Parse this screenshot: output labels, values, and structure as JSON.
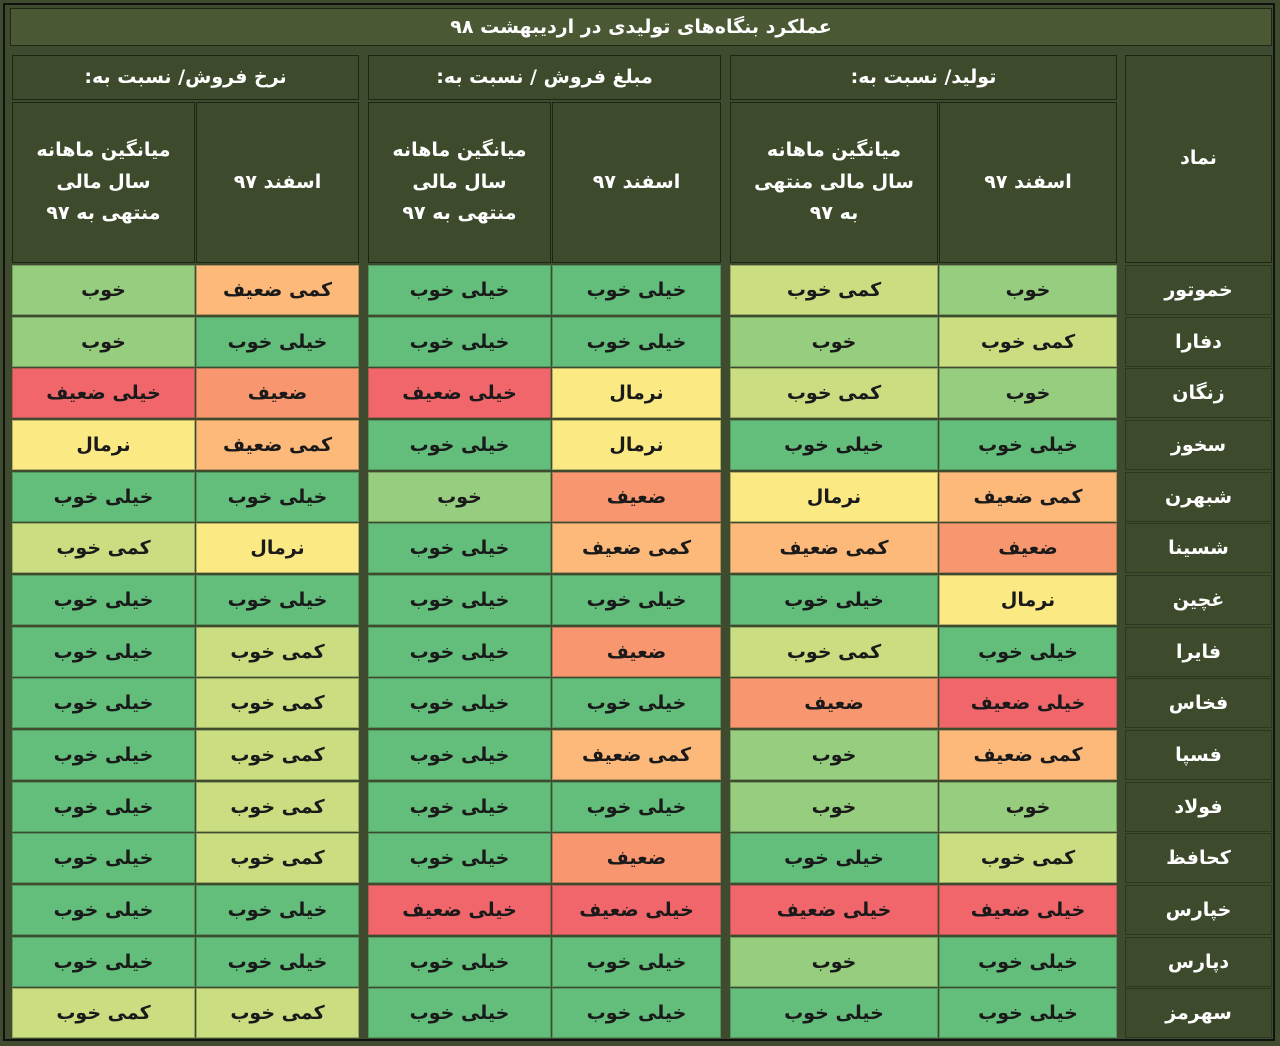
{
  "chart_data": {
    "type": "table",
    "title": "عملکرد بنگاه‌های تولیدی در اردیبهشت ۹۸",
    "symbol_header": "نماد",
    "groups": [
      {
        "label": "تولید/ نسبت به:",
        "columns": [
          "اسفند ۹۷",
          "میانگین ماهانه سال مالی منتهی به ۹۷"
        ]
      },
      {
        "label": "مبلغ فروش / نسبت به:",
        "columns": [
          "اسفند ۹۷",
          "میانگین ماهانه سال مالی منتهی به ۹۷"
        ]
      },
      {
        "label": "نرخ فروش/ نسبت به:",
        "columns": [
          "اسفند ۹۷",
          "میانگین ماهانه سال مالی منتهی به ۹۷"
        ]
      }
    ],
    "rows": [
      {
        "symbol": "خموتور",
        "values": [
          "خوب",
          "کمی خوب",
          "خیلی خوب",
          "خیلی خوب",
          "کمی ضعیف",
          "خوب"
        ]
      },
      {
        "symbol": "دفارا",
        "values": [
          "کمی خوب",
          "خوب",
          "خیلی خوب",
          "خیلی خوب",
          "خیلی خوب",
          "خوب"
        ]
      },
      {
        "symbol": "زنگان",
        "values": [
          "خوب",
          "کمی خوب",
          "نرمال",
          "خیلی ضعیف",
          "ضعیف",
          "خیلی ضعیف"
        ]
      },
      {
        "symbol": "سخوز",
        "values": [
          "خیلی خوب",
          "خیلی خوب",
          "نرمال",
          "خیلی خوب",
          "کمی ضعیف",
          "نرمال"
        ]
      },
      {
        "symbol": "شبهرن",
        "values": [
          "کمی ضعیف",
          "نرمال",
          "ضعیف",
          "خوب",
          "خیلی خوب",
          "خیلی خوب"
        ]
      },
      {
        "symbol": "شسینا",
        "values": [
          "ضعیف",
          "کمی ضعیف",
          "کمی ضعیف",
          "خیلی خوب",
          "نرمال",
          "کمی خوب"
        ]
      },
      {
        "symbol": "غچین",
        "values": [
          "نرمال",
          "خیلی خوب",
          "خیلی خوب",
          "خیلی خوب",
          "خیلی خوب",
          "خیلی خوب"
        ]
      },
      {
        "symbol": "فایرا",
        "values": [
          "خیلی خوب",
          "کمی خوب",
          "ضعیف",
          "خیلی خوب",
          "کمی خوب",
          "خیلی خوب"
        ]
      },
      {
        "symbol": "فخاس",
        "values": [
          "خیلی ضعیف",
          "ضعیف",
          "خیلی خوب",
          "خیلی خوب",
          "کمی خوب",
          "خیلی خوب"
        ]
      },
      {
        "symbol": "فسپا",
        "values": [
          "کمی ضعیف",
          "خوب",
          "کمی ضعیف",
          "خیلی خوب",
          "کمی خوب",
          "خیلی خوب"
        ]
      },
      {
        "symbol": "فولاد",
        "values": [
          "خوب",
          "خوب",
          "خیلی خوب",
          "خیلی خوب",
          "کمی خوب",
          "خیلی خوب"
        ]
      },
      {
        "symbol": "کحافظ",
        "values": [
          "کمی خوب",
          "خیلی خوب",
          "ضعیف",
          "خیلی خوب",
          "کمی خوب",
          "خیلی خوب"
        ]
      },
      {
        "symbol": "خپارس",
        "values": [
          "خیلی ضعیف",
          "خیلی ضعیف",
          "خیلی ضعیف",
          "خیلی ضعیف",
          "خیلی خوب",
          "خیلی خوب"
        ]
      },
      {
        "symbol": "دپارس",
        "values": [
          "خیلی خوب",
          "خوب",
          "خیلی خوب",
          "خیلی خوب",
          "خیلی خوب",
          "خیلی خوب"
        ]
      },
      {
        "symbol": "سهرمز",
        "values": [
          "خیلی خوب",
          "خیلی خوب",
          "خیلی خوب",
          "خیلی خوب",
          "کمی خوب",
          "کمی خوب"
        ]
      }
    ]
  },
  "rating_colors": {
    "خیلی خوب": "#63be7b",
    "خوب": "#97cd7e",
    "کمی خوب": "#cbdd81",
    "نرمال": "#fbe983",
    "کمی ضعیف": "#fcb979",
    "ضعیف": "#f8966f",
    "خیلی ضعیف": "#f1666b"
  },
  "theme": {
    "page_bg": "#3f4b2e",
    "header_bg": "#3d4a2b",
    "header_text": "#ffffff"
  }
}
